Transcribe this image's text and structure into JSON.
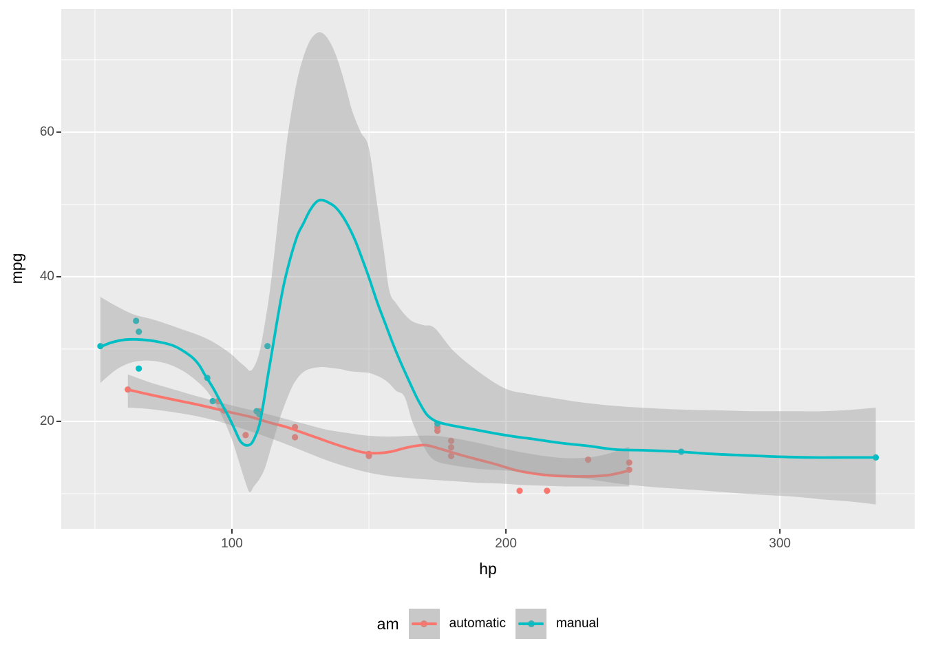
{
  "style": {
    "panel_bg": "#EBEBEB",
    "grid_color": "#FFFFFF",
    "ribbon_fill": "#999999",
    "ribbon_alpha": 0.4,
    "axis_text_color": "#4D4D4D",
    "tick_mark_color": "#333333",
    "legend_key_bg": "#C8C8C8",
    "muted_automatic_dot": "#D5857E",
    "muted_manual_dot": "#3EAEB1"
  },
  "axes": {
    "x": {
      "title": "hp",
      "tick_labels": [
        "100",
        "200",
        "300"
      ]
    },
    "y": {
      "title": "mpg",
      "tick_labels": [
        "60",
        "40",
        "20"
      ]
    }
  },
  "legend": {
    "title": "am",
    "items": [
      {
        "label": "automatic",
        "color": "#F8766D"
      },
      {
        "label": "manual",
        "color": "#00BFC4"
      }
    ]
  },
  "chart_data": {
    "type": "scatter",
    "title": "",
    "xlabel": "hp",
    "ylabel": "mpg",
    "xlim": [
      37.7,
      349.2
    ],
    "ylim": [
      5.14,
      77.03
    ],
    "grid": true,
    "legend_position": "bottom",
    "x_ticks": {
      "major": [
        100,
        200,
        300
      ],
      "minor": [
        50,
        150,
        250,
        350
      ]
    },
    "y_ticks": {
      "major": [
        20,
        40,
        60
      ],
      "minor": [
        10,
        30,
        50,
        70
      ]
    },
    "series": [
      {
        "name": "automatic",
        "color": "#F8766D",
        "points": [
          [
            110,
            21.4
          ],
          [
            175,
            18.7
          ],
          [
            105,
            18.1
          ],
          [
            245,
            14.3
          ],
          [
            62,
            24.4
          ],
          [
            95,
            22.8
          ],
          [
            123,
            19.2
          ],
          [
            123,
            17.8
          ],
          [
            180,
            16.4
          ],
          [
            180,
            17.3
          ],
          [
            180,
            15.2
          ],
          [
            205,
            10.4
          ],
          [
            215,
            10.4
          ],
          [
            230,
            14.7
          ],
          [
            97,
            21.5
          ],
          [
            150,
            15.5
          ],
          [
            150,
            15.2
          ],
          [
            245,
            13.3
          ],
          [
            175,
            19.2
          ]
        ],
        "smooth_line": [
          [
            62,
            24.4
          ],
          [
            70,
            23.7
          ],
          [
            80,
            22.9
          ],
          [
            90,
            22.1
          ],
          [
            100,
            21.2
          ],
          [
            107,
            20.6
          ],
          [
            114,
            19.8
          ],
          [
            120,
            19.2
          ],
          [
            126,
            18.4
          ],
          [
            132,
            17.6
          ],
          [
            138,
            16.8
          ],
          [
            143,
            16.2
          ],
          [
            148,
            15.7
          ],
          [
            153,
            15.6
          ],
          [
            158,
            15.8
          ],
          [
            163,
            16.3
          ],
          [
            167,
            16.6
          ],
          [
            171,
            16.7
          ],
          [
            176,
            16.2
          ],
          [
            184,
            15.3
          ],
          [
            190,
            14.7
          ],
          [
            196,
            14.1
          ],
          [
            203,
            13.3
          ],
          [
            210,
            12.8
          ],
          [
            217,
            12.5
          ],
          [
            224,
            12.4
          ],
          [
            231,
            12.4
          ],
          [
            238,
            12.6
          ],
          [
            245,
            13.2
          ]
        ],
        "ribbon": [
          [
            62,
            21.9,
            26.5
          ],
          [
            70,
            21.7,
            25.4
          ],
          [
            78,
            21.3,
            24.5
          ],
          [
            86,
            20.8,
            23.6
          ],
          [
            94,
            20.1,
            22.8
          ],
          [
            102,
            19.2,
            22.0
          ],
          [
            110,
            18.2,
            21.3
          ],
          [
            118,
            17.1,
            20.5
          ],
          [
            126,
            15.9,
            19.7
          ],
          [
            134,
            14.7,
            18.9
          ],
          [
            142,
            13.7,
            18.4
          ],
          [
            150,
            12.9,
            18.0
          ],
          [
            158,
            12.4,
            17.9
          ],
          [
            166,
            12.1,
            18.0
          ],
          [
            174,
            11.9,
            18.0
          ],
          [
            182,
            11.7,
            17.6
          ],
          [
            190,
            11.5,
            17.0
          ],
          [
            198,
            11.4,
            16.3
          ],
          [
            206,
            11.2,
            15.7
          ],
          [
            214,
            11.1,
            15.2
          ],
          [
            222,
            11.0,
            14.9
          ],
          [
            230,
            11.0,
            15.0
          ],
          [
            237,
            11.0,
            15.5
          ],
          [
            245,
            11.0,
            16.5
          ]
        ]
      },
      {
        "name": "manual",
        "color": "#00BFC4",
        "points": [
          [
            110,
            21.0
          ],
          [
            110,
            21.0
          ],
          [
            93,
            22.8
          ],
          [
            66,
            32.4
          ],
          [
            52,
            30.4
          ],
          [
            65,
            33.9
          ],
          [
            66,
            27.3
          ],
          [
            91,
            26.0
          ],
          [
            113,
            30.4
          ],
          [
            264,
            15.8
          ],
          [
            175,
            19.7
          ],
          [
            335,
            15.0
          ],
          [
            109,
            21.4
          ]
        ],
        "smooth_line": [
          [
            52,
            30.3
          ],
          [
            56,
            30.9
          ],
          [
            61,
            31.3
          ],
          [
            67,
            31.3
          ],
          [
            73,
            31.0
          ],
          [
            79,
            30.4
          ],
          [
            85,
            29.0
          ],
          [
            88,
            27.8
          ],
          [
            90,
            26.5
          ],
          [
            93,
            24.7
          ],
          [
            95,
            23.3
          ],
          [
            97,
            21.9
          ],
          [
            99,
            20.5
          ],
          [
            101,
            18.9
          ],
          [
            103,
            17.3
          ],
          [
            105,
            16.7
          ],
          [
            107,
            16.9
          ],
          [
            108.5,
            17.9
          ],
          [
            110,
            19.5
          ],
          [
            111.5,
            22.5
          ],
          [
            113,
            26.0
          ],
          [
            115,
            30.5
          ],
          [
            117,
            35.0
          ],
          [
            119,
            39.0
          ],
          [
            121.5,
            42.8
          ],
          [
            124,
            45.8
          ],
          [
            126,
            47.3
          ],
          [
            128.5,
            49.2
          ],
          [
            131,
            50.4
          ],
          [
            133,
            50.6
          ],
          [
            135,
            50.3
          ],
          [
            137.5,
            49.7
          ],
          [
            140,
            48.6
          ],
          [
            142.5,
            47.0
          ],
          [
            145,
            45.0
          ],
          [
            147.5,
            42.5
          ],
          [
            150,
            39.9
          ],
          [
            153,
            36.5
          ],
          [
            156,
            33.5
          ],
          [
            159,
            30.5
          ],
          [
            162,
            27.8
          ],
          [
            165,
            25.3
          ],
          [
            168,
            22.9
          ],
          [
            171,
            21.0
          ],
          [
            174,
            20.1
          ],
          [
            177,
            19.7
          ],
          [
            182,
            19.3
          ],
          [
            188,
            18.9
          ],
          [
            195,
            18.4
          ],
          [
            203,
            17.9
          ],
          [
            211,
            17.5
          ],
          [
            220,
            17.0
          ],
          [
            230,
            16.6
          ],
          [
            240,
            16.1
          ],
          [
            250,
            16.0
          ],
          [
            263,
            15.8
          ],
          [
            275,
            15.5
          ],
          [
            287,
            15.3
          ],
          [
            300,
            15.1
          ],
          [
            312,
            15.0
          ],
          [
            324,
            15.0
          ],
          [
            335,
            15.0
          ]
        ],
        "ribbon": [
          [
            52,
            25.3,
            37.2
          ],
          [
            58,
            27.2,
            35.9
          ],
          [
            64,
            28.2,
            34.8
          ],
          [
            70,
            28.4,
            34.2
          ],
          [
            76,
            28.0,
            33.5
          ],
          [
            82,
            27.0,
            32.7
          ],
          [
            88,
            25.3,
            31.9
          ],
          [
            92,
            23.6,
            31.2
          ],
          [
            96,
            21.0,
            30.3
          ],
          [
            100,
            17.5,
            29.2
          ],
          [
            102.5,
            14.5,
            28.3
          ],
          [
            105,
            11.5,
            27.5
          ],
          [
            106.5,
            10.2,
            27.0
          ],
          [
            108,
            11.0,
            27.5
          ],
          [
            110,
            12.0,
            29.5
          ],
          [
            112,
            13.5,
            33.5
          ],
          [
            114,
            16.0,
            38.5
          ],
          [
            116,
            18.5,
            45.0
          ],
          [
            118,
            21.0,
            52.0
          ],
          [
            120,
            23.0,
            58.5
          ],
          [
            122,
            24.8,
            63.5
          ],
          [
            124,
            26.0,
            67.5
          ],
          [
            126,
            26.8,
            70.3
          ],
          [
            128,
            27.2,
            72.3
          ],
          [
            130,
            27.4,
            73.4
          ],
          [
            132,
            27.5,
            73.8
          ],
          [
            134,
            27.5,
            73.4
          ],
          [
            136,
            27.4,
            72.3
          ],
          [
            138,
            27.3,
            70.6
          ],
          [
            140,
            27.2,
            68.3
          ],
          [
            142,
            27.0,
            65.6
          ],
          [
            144,
            26.9,
            62.8
          ],
          [
            147,
            26.8,
            60.0
          ],
          [
            150,
            26.7,
            57.8
          ],
          [
            153,
            26.3,
            50.0
          ],
          [
            155.5,
            25.8,
            43.5
          ],
          [
            157.5,
            25.2,
            38.0
          ],
          [
            160,
            24.2,
            36.3
          ],
          [
            163,
            23.4,
            34.8
          ],
          [
            166,
            19.8,
            33.8
          ],
          [
            170,
            16.5,
            33.3
          ],
          [
            174,
            14.6,
            32.9
          ],
          [
            181,
            13.9,
            29.7
          ],
          [
            191,
            13.4,
            26.6
          ],
          [
            200,
            13.2,
            24.5
          ],
          [
            208,
            12.9,
            23.8
          ],
          [
            216,
            12.5,
            23.3
          ],
          [
            228,
            12.1,
            22.6
          ],
          [
            241,
            11.4,
            22.1
          ],
          [
            254,
            10.9,
            21.8
          ],
          [
            266,
            10.6,
            21.6
          ],
          [
            280,
            10.2,
            21.5
          ],
          [
            291,
            9.9,
            21.4
          ],
          [
            305,
            9.6,
            21.4
          ],
          [
            316,
            9.2,
            21.4
          ],
          [
            326,
            8.9,
            21.6
          ],
          [
            335,
            8.5,
            21.9
          ]
        ]
      }
    ]
  }
}
